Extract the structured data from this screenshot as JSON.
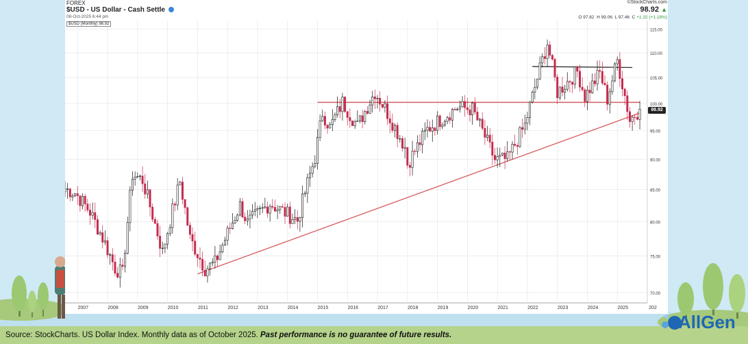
{
  "header": {
    "category": "FOREX",
    "title": "$USD - US Dollar - Cash Settle",
    "date": "08-Oct-2025 6:44 pm",
    "provider": "©StockCharts.com",
    "last_price": "98.92",
    "ohlc": {
      "o_label": "O",
      "o": "97.82",
      "h_label": "H",
      "h": "99.06",
      "l_label": "L",
      "l": "97.46",
      "c_label": "C",
      "change": "+1.15 (+1.18%)"
    },
    "legend_label": "$USD (Monthly) 98.92",
    "price_tag": "98.92"
  },
  "caption": {
    "normal": "Source: StockCharts. US Dollar Index. Monthly data as of October 2025. ",
    "italic": "Past performance is no guarantee of future results."
  },
  "brand": {
    "name": "AllGen"
  },
  "colors": {
    "up": "#111111",
    "down": "#c42a4c",
    "resistance": "#d65a5a",
    "trend": "#d65a5a",
    "top_line": "#333333"
  },
  "chart_data": {
    "type": "candlestick",
    "y_scale": "log",
    "ylim": [
      69,
      116
    ],
    "y_ticks": [
      "115.00",
      "110.00",
      "105.00",
      "100.00",
      "95.00",
      "90.00",
      "85.00",
      "80.00",
      "75.00",
      "70.00"
    ],
    "x_ticks": [
      "2007",
      "2008",
      "2009",
      "2010",
      "2011",
      "2012",
      "2013",
      "2014",
      "2015",
      "2016",
      "2017",
      "2018",
      "2019",
      "2020",
      "2021",
      "2022",
      "2023",
      "2024",
      "2025",
      "202"
    ],
    "monthly_close_path": [
      [
        "2006-08",
        85.1
      ],
      [
        "2006-12",
        84.5
      ],
      [
        "2007-06",
        81.5
      ],
      [
        "2007-12",
        76.8
      ],
      [
        "2008-04",
        73.3
      ],
      [
        "2008-07",
        72.5
      ],
      [
        "2008-11",
        87.5
      ],
      [
        "2009-03",
        86.5
      ],
      [
        "2009-11",
        75.5
      ],
      [
        "2010-06",
        86.3
      ],
      [
        "2010-10",
        77.5
      ],
      [
        "2011-04",
        73.2
      ],
      [
        "2011-08",
        74.0
      ],
      [
        "2012-06",
        82.5
      ],
      [
        "2012-09",
        79.8
      ],
      [
        "2013-06",
        82.8
      ],
      [
        "2014-05",
        80.2
      ],
      [
        "2014-12",
        90.3
      ],
      [
        "2015-03",
        98.3
      ],
      [
        "2015-06",
        95.5
      ],
      [
        "2015-11",
        100.2
      ],
      [
        "2016-05",
        95.8
      ],
      [
        "2016-12",
        102.2
      ],
      [
        "2017-04",
        99.1
      ],
      [
        "2017-12",
        92.1
      ],
      [
        "2018-01",
        89.2
      ],
      [
        "2018-09",
        95.2
      ],
      [
        "2019-09",
        99.3
      ],
      [
        "2020-03",
        98.9
      ],
      [
        "2020-12",
        89.9
      ],
      [
        "2021-05",
        90.0
      ],
      [
        "2021-12",
        95.9
      ],
      [
        "2022-09",
        112.1
      ],
      [
        "2023-01",
        102.1
      ],
      [
        "2023-09",
        106.2
      ],
      [
        "2023-12",
        101.3
      ],
      [
        "2024-06",
        105.9
      ],
      [
        "2024-09",
        100.8
      ],
      [
        "2025-01",
        108.4
      ],
      [
        "2025-06",
        96.9
      ],
      [
        "2025-10",
        98.92
      ]
    ],
    "overlays": [
      {
        "kind": "trendline",
        "from": [
          "2011-01",
          72.5
        ],
        "to": [
          "2025-10",
          98.2
        ]
      },
      {
        "kind": "horizontal",
        "from": [
          "2015-01",
          100.2
        ],
        "to": [
          "2025-10",
          100.2
        ]
      },
      {
        "kind": "horizontal",
        "from": [
          "2022-03",
          107.2
        ],
        "to": [
          "2025-07",
          107.0
        ]
      }
    ]
  }
}
